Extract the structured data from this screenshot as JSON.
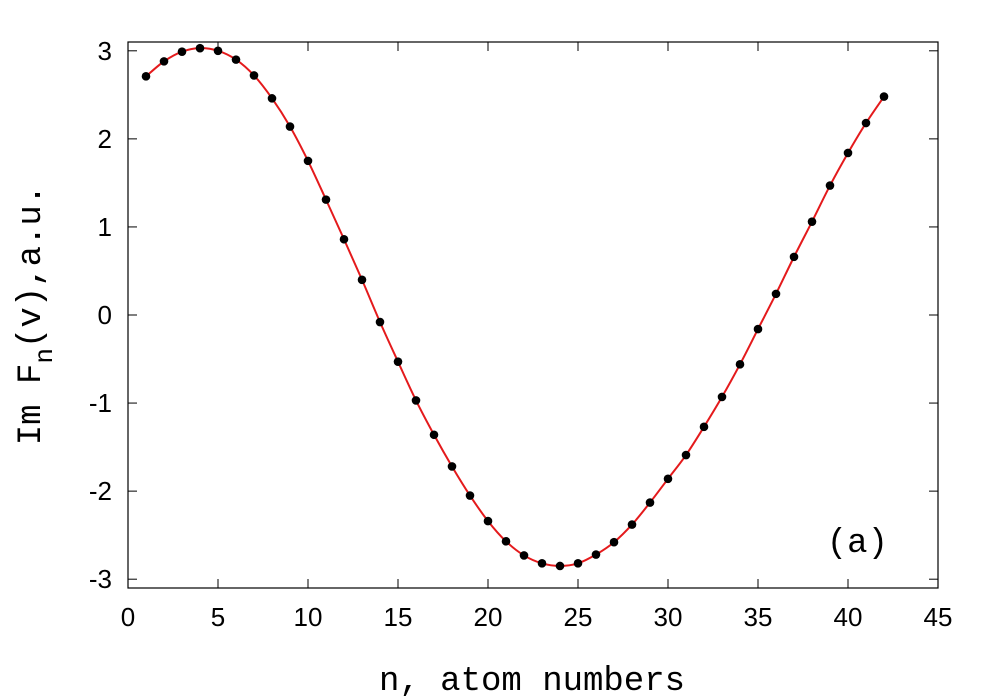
{
  "chart_data": {
    "type": "line",
    "xlabel": "n, atom numbers",
    "ylabel": {
      "prefix": "Im F",
      "subscript": "n",
      "suffix": "(v),a.u."
    },
    "panel_label": "(a)",
    "xlim": [
      0,
      45
    ],
    "ylim": [
      -3.1,
      3.1
    ],
    "xticks": [
      0,
      5,
      10,
      15,
      20,
      25,
      30,
      35,
      40,
      45
    ],
    "yticks": [
      -3,
      -2,
      -1,
      0,
      1,
      2,
      3
    ],
    "grid": false,
    "colors": {
      "line": "#e41a1c",
      "points": "#000000"
    },
    "series": [
      {
        "style": "points",
        "x": [
          1,
          2,
          3,
          4,
          5,
          6,
          7,
          8,
          9,
          10,
          11,
          12,
          13,
          14,
          15,
          16,
          17,
          18,
          19,
          20,
          21,
          22,
          23,
          24,
          25,
          26,
          27,
          28,
          29,
          30,
          31,
          32,
          33,
          34,
          35,
          36,
          37,
          38,
          39,
          40,
          41,
          42
        ],
        "y": [
          2.71,
          2.88,
          2.99,
          3.03,
          3.0,
          2.9,
          2.72,
          2.46,
          2.14,
          1.75,
          1.31,
          0.86,
          0.4,
          -0.08,
          -0.53,
          -0.97,
          -1.36,
          -1.72,
          -2.05,
          -2.34,
          -2.57,
          -2.73,
          -2.82,
          -2.85,
          -2.82,
          -2.72,
          -2.58,
          -2.38,
          -2.13,
          -1.86,
          -1.59,
          -1.27,
          -0.93,
          -0.56,
          -0.16,
          0.24,
          0.66,
          1.06,
          1.47,
          1.84,
          2.18,
          2.48
        ]
      },
      {
        "style": "line",
        "x": [
          1,
          2,
          3,
          4,
          5,
          6,
          7,
          8,
          9,
          10,
          11,
          12,
          13,
          14,
          15,
          16,
          17,
          18,
          19,
          20,
          21,
          22,
          23,
          24,
          25,
          26,
          27,
          28,
          29,
          30,
          31,
          32,
          33,
          34,
          35,
          36,
          37,
          38,
          39,
          40,
          41,
          42
        ],
        "y": [
          2.71,
          2.88,
          2.99,
          3.03,
          3.0,
          2.9,
          2.72,
          2.46,
          2.14,
          1.75,
          1.31,
          0.86,
          0.4,
          -0.08,
          -0.53,
          -0.97,
          -1.36,
          -1.72,
          -2.05,
          -2.34,
          -2.57,
          -2.73,
          -2.82,
          -2.85,
          -2.82,
          -2.72,
          -2.58,
          -2.38,
          -2.13,
          -1.86,
          -1.59,
          -1.27,
          -0.93,
          -0.56,
          -0.16,
          0.24,
          0.66,
          1.06,
          1.47,
          1.84,
          2.18,
          2.48
        ]
      }
    ]
  }
}
